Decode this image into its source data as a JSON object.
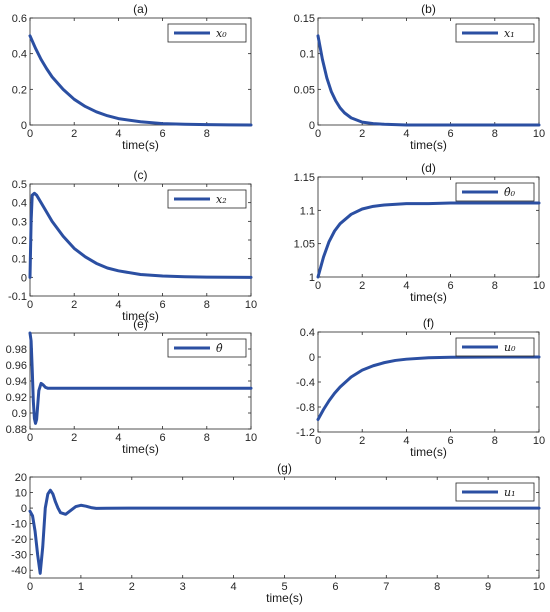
{
  "colors": {
    "series": "#2b4fa2",
    "axis": "#262626"
  },
  "chart_data": [
    {
      "id": "a",
      "type": "line",
      "title": "(a)",
      "xlabel": "time(s)",
      "ylabel": "",
      "xlim": [
        0,
        10
      ],
      "ylim": [
        0,
        0.6
      ],
      "xticks": [
        0,
        2,
        4,
        6,
        8
      ],
      "xtick_labels": [
        "0",
        "2",
        "4",
        "6",
        "8"
      ],
      "yticks": [
        0,
        0.2,
        0.4,
        0.6
      ],
      "ytick_labels": [
        "0",
        "0.2",
        "0.4",
        "0.6"
      ],
      "legend_position": "top-right",
      "series": [
        {
          "name": "x0",
          "legend": "x₀",
          "x": [
            0,
            0.25,
            0.5,
            0.75,
            1,
            1.5,
            2,
            2.5,
            3,
            3.5,
            4,
            5,
            6,
            7,
            8,
            9,
            10
          ],
          "y": [
            0.5,
            0.43,
            0.368,
            0.316,
            0.27,
            0.2,
            0.144,
            0.104,
            0.074,
            0.052,
            0.036,
            0.018,
            0.008,
            0.004,
            0.002,
            0.001,
            0
          ]
        }
      ]
    },
    {
      "id": "b",
      "type": "line",
      "title": "(b)",
      "xlabel": "time(s)",
      "ylabel": "",
      "xlim": [
        0,
        10
      ],
      "ylim": [
        0,
        0.15
      ],
      "xticks": [
        0,
        2,
        4,
        6,
        8,
        10
      ],
      "xtick_labels": [
        "0",
        "2",
        "4",
        "6",
        "8",
        "10"
      ],
      "yticks": [
        0,
        0.05,
        0.1,
        0.15
      ],
      "ytick_labels": [
        "0",
        "0.05",
        "0.1",
        "0.15"
      ],
      "legend_position": "top-right",
      "series": [
        {
          "name": "x1",
          "legend": "x₁",
          "x": [
            0,
            0.2,
            0.4,
            0.6,
            0.8,
            1,
            1.2,
            1.5,
            2,
            2.5,
            3,
            4,
            6,
            8,
            10
          ],
          "y": [
            0.125,
            0.092,
            0.066,
            0.047,
            0.034,
            0.024,
            0.017,
            0.01,
            0.004,
            0.002,
            0.001,
            0,
            0,
            0,
            0
          ]
        }
      ]
    },
    {
      "id": "c",
      "type": "line",
      "title": "(c)",
      "xlabel": "time(s)",
      "ylabel": "",
      "xlim": [
        0,
        10
      ],
      "ylim": [
        -0.1,
        0.5
      ],
      "xticks": [
        0,
        2,
        4,
        6,
        8,
        10
      ],
      "xtick_labels": [
        "0",
        "2",
        "4",
        "6",
        "8",
        "10"
      ],
      "yticks": [
        -0.1,
        0,
        0.1,
        0.2,
        0.3,
        0.4,
        0.5
      ],
      "ytick_labels": [
        "-0.1",
        "0",
        "0.1",
        "0.2",
        "0.3",
        "0.4",
        "0.5"
      ],
      "legend_position": "top-right",
      "series": [
        {
          "name": "x2",
          "legend": "x₂",
          "x": [
            0,
            0.05,
            0.1,
            0.2,
            0.3,
            0.5,
            0.75,
            1,
            1.5,
            2,
            2.5,
            3,
            3.5,
            4,
            5,
            6,
            7,
            8,
            10
          ],
          "y": [
            0,
            0.3,
            0.44,
            0.45,
            0.44,
            0.4,
            0.35,
            0.3,
            0.22,
            0.155,
            0.11,
            0.075,
            0.05,
            0.035,
            0.015,
            0.007,
            0.003,
            0.001,
            0
          ]
        }
      ]
    },
    {
      "id": "d",
      "type": "line",
      "title": "(d)",
      "xlabel": "time(s)",
      "ylabel": "",
      "xlim": [
        0,
        10
      ],
      "ylim": [
        1,
        1.15
      ],
      "xticks": [
        0,
        2,
        4,
        6,
        8,
        10
      ],
      "xtick_labels": [
        "0",
        "2",
        "4",
        "6",
        "8",
        "10"
      ],
      "yticks": [
        1,
        1.05,
        1.1,
        1.15
      ],
      "ytick_labels": [
        "1",
        "1.05",
        "1.1",
        "1.15"
      ],
      "legend_position": "top-right",
      "series": [
        {
          "name": "theta0-hat",
          "legend": "θ̂₀",
          "x": [
            0,
            0.25,
            0.5,
            0.75,
            1,
            1.5,
            2,
            2.5,
            3,
            4,
            5,
            6,
            8,
            10
          ],
          "y": [
            1.0,
            1.03,
            1.053,
            1.069,
            1.08,
            1.094,
            1.102,
            1.106,
            1.108,
            1.11,
            1.11,
            1.111,
            1.111,
            1.111
          ]
        }
      ]
    },
    {
      "id": "e",
      "type": "line",
      "title": "(e)",
      "xlabel": "time(s)",
      "ylabel": "",
      "xlim": [
        0,
        10
      ],
      "ylim": [
        0.88,
        1.0
      ],
      "xticks": [
        0,
        2,
        4,
        6,
        8,
        10
      ],
      "xtick_labels": [
        "0",
        "2",
        "4",
        "6",
        "8",
        "10"
      ],
      "yticks": [
        0.88,
        0.9,
        0.92,
        0.94,
        0.96,
        0.98
      ],
      "ytick_labels": [
        "0.88",
        "0.9",
        "0.92",
        "0.94",
        "0.96",
        "0.98"
      ],
      "legend_position": "top-right",
      "series": [
        {
          "name": "theta-hat",
          "legend": "θ̂",
          "x": [
            0,
            0.05,
            0.1,
            0.15,
            0.2,
            0.25,
            0.3,
            0.35,
            0.4,
            0.5,
            0.6,
            0.7,
            0.8,
            1,
            2,
            5,
            10
          ],
          "y": [
            1.0,
            0.99,
            0.955,
            0.915,
            0.893,
            0.887,
            0.892,
            0.91,
            0.928,
            0.937,
            0.935,
            0.932,
            0.931,
            0.931,
            0.931,
            0.931,
            0.931
          ]
        }
      ]
    },
    {
      "id": "f",
      "type": "line",
      "title": "(f)",
      "xlabel": "time(s)",
      "ylabel": "",
      "xlim": [
        0,
        10
      ],
      "ylim": [
        -1.2,
        0.4
      ],
      "xticks": [
        0,
        2,
        4,
        6,
        8,
        10
      ],
      "xtick_labels": [
        "0",
        "2",
        "4",
        "6",
        "8",
        "10"
      ],
      "yticks": [
        -1.2,
        -0.8,
        -0.4,
        0,
        0.4
      ],
      "ytick_labels": [
        "-1.2",
        "-0.8",
        "-0.4",
        "0",
        "0.4"
      ],
      "legend_position": "top-right",
      "series": [
        {
          "name": "u0",
          "legend": "u₀",
          "x": [
            0,
            0.25,
            0.5,
            0.75,
            1,
            1.5,
            2,
            2.5,
            3,
            3.5,
            4,
            5,
            6,
            8,
            10
          ],
          "y": [
            -1.0,
            -0.84,
            -0.7,
            -0.58,
            -0.48,
            -0.32,
            -0.21,
            -0.14,
            -0.09,
            -0.055,
            -0.035,
            -0.012,
            -0.004,
            0,
            0
          ]
        }
      ]
    },
    {
      "id": "g",
      "type": "line",
      "title": "(g)",
      "xlabel": "time(s)",
      "ylabel": "",
      "xlim": [
        0,
        10
      ],
      "ylim": [
        -45,
        20
      ],
      "xticks": [
        0,
        1,
        2,
        3,
        4,
        5,
        6,
        7,
        8,
        9,
        10
      ],
      "xtick_labels": [
        "0",
        "1",
        "2",
        "3",
        "4",
        "5",
        "6",
        "7",
        "8",
        "9",
        "10"
      ],
      "yticks": [
        -40,
        -30,
        -20,
        -10,
        0,
        10,
        20
      ],
      "ytick_labels": [
        "-40",
        "-30",
        "-20",
        "-10",
        "0",
        "10",
        "20"
      ],
      "legend_position": "top-right",
      "series": [
        {
          "name": "u1",
          "legend": "u₁",
          "x": [
            0,
            0.05,
            0.1,
            0.15,
            0.2,
            0.25,
            0.3,
            0.35,
            0.4,
            0.45,
            0.5,
            0.55,
            0.6,
            0.7,
            0.8,
            0.9,
            1.0,
            1.1,
            1.2,
            1.3,
            1.5,
            2,
            3,
            5,
            10
          ],
          "y": [
            -2,
            -5,
            -15,
            -30,
            -42,
            -25,
            0,
            9,
            11.5,
            9,
            4,
            0,
            -3,
            -4,
            -1.5,
            1,
            1.8,
            1.2,
            0.3,
            -0.2,
            -0.1,
            0,
            0,
            0,
            0
          ]
        }
      ]
    }
  ]
}
